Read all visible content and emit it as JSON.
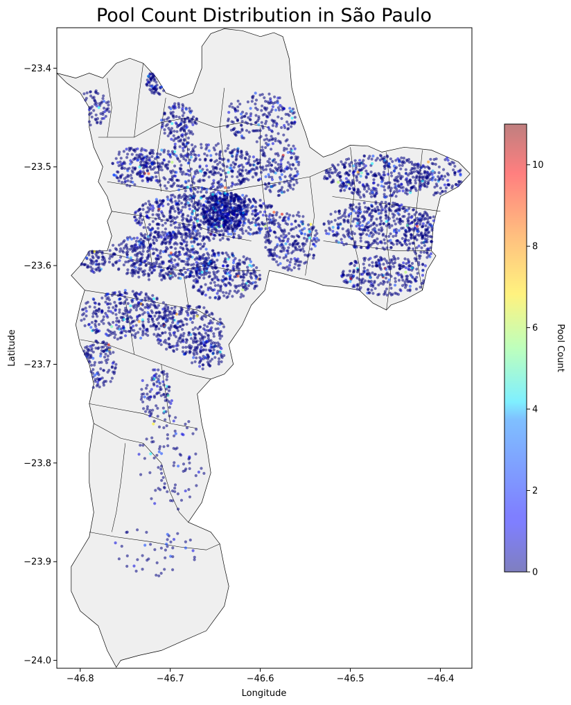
{
  "chart_data": {
    "type": "scatter",
    "title": "Pool Count Distribution in São Paulo",
    "xlabel": "Longitude",
    "ylabel": "Latitude",
    "xlim": [
      -46.826,
      -46.365
    ],
    "ylim": [
      -24.008,
      -23.359
    ],
    "xticks": [
      -46.8,
      -46.7,
      -46.6,
      -46.5,
      -46.4
    ],
    "yticks": [
      -23.4,
      -23.5,
      -23.6,
      -23.7,
      -23.8,
      -23.9,
      -24.0
    ],
    "x_tick_labels": [
      "−46.8",
      "−46.7",
      "−46.6",
      "−46.5",
      "−46.4"
    ],
    "y_tick_labels": [
      "−23.4",
      "−23.5",
      "−23.6",
      "−23.7",
      "−23.8",
      "−23.9",
      "−24.0"
    ],
    "colorbar": {
      "label": "Pool Count",
      "colormap": "jet",
      "alpha": 0.5,
      "range": [
        0,
        11
      ],
      "ticks": [
        0,
        2,
        4,
        6,
        8,
        10
      ],
      "tick_labels": [
        "0",
        "2",
        "4",
        "6",
        "8",
        "10"
      ]
    },
    "map_fill": "#efefef",
    "map_stroke": "#000000",
    "outline": [
      [
        -46.826,
        -23.405
      ],
      [
        -46.805,
        -23.41
      ],
      [
        -46.79,
        -23.405
      ],
      [
        -46.775,
        -23.41
      ],
      [
        -46.76,
        -23.395
      ],
      [
        -46.745,
        -23.39
      ],
      [
        -46.73,
        -23.395
      ],
      [
        -46.715,
        -23.41
      ],
      [
        -46.705,
        -23.425
      ],
      [
        -46.69,
        -23.43
      ],
      [
        -46.675,
        -23.425
      ],
      [
        -46.665,
        -23.4
      ],
      [
        -46.665,
        -23.378
      ],
      [
        -46.655,
        -23.365
      ],
      [
        -46.64,
        -23.36
      ],
      [
        -46.62,
        -23.362
      ],
      [
        -46.6,
        -23.368
      ],
      [
        -46.585,
        -23.364
      ],
      [
        -46.575,
        -23.368
      ],
      [
        -46.568,
        -23.39
      ],
      [
        -46.565,
        -23.42
      ],
      [
        -46.558,
        -23.445
      ],
      [
        -46.55,
        -23.465
      ],
      [
        -46.545,
        -23.48
      ],
      [
        -46.53,
        -23.49
      ],
      [
        -46.52,
        -23.487
      ],
      [
        -46.5,
        -23.478
      ],
      [
        -46.48,
        -23.479
      ],
      [
        -46.465,
        -23.485
      ],
      [
        -46.44,
        -23.48
      ],
      [
        -46.41,
        -23.483
      ],
      [
        -46.38,
        -23.495
      ],
      [
        -46.367,
        -23.507
      ],
      [
        -46.38,
        -23.52
      ],
      [
        -46.4,
        -23.53
      ],
      [
        -46.408,
        -23.56
      ],
      [
        -46.41,
        -23.585
      ],
      [
        -46.405,
        -23.59
      ],
      [
        -46.415,
        -23.605
      ],
      [
        -46.42,
        -23.625
      ],
      [
        -46.44,
        -23.635
      ],
      [
        -46.455,
        -23.64
      ],
      [
        -46.46,
        -23.645
      ],
      [
        -46.475,
        -23.638
      ],
      [
        -46.49,
        -23.625
      ],
      [
        -46.51,
        -23.622
      ],
      [
        -46.53,
        -23.62
      ],
      [
        -46.545,
        -23.615
      ],
      [
        -46.56,
        -23.612
      ],
      [
        -46.575,
        -23.608
      ],
      [
        -46.59,
        -23.605
      ],
      [
        -46.595,
        -23.625
      ],
      [
        -46.61,
        -23.64
      ],
      [
        -46.62,
        -23.66
      ],
      [
        -46.635,
        -23.68
      ],
      [
        -46.63,
        -23.7
      ],
      [
        -46.64,
        -23.71
      ],
      [
        -46.655,
        -23.715
      ],
      [
        -46.67,
        -23.73
      ],
      [
        -46.665,
        -23.76
      ],
      [
        -46.66,
        -23.78
      ],
      [
        -46.655,
        -23.81
      ],
      [
        -46.665,
        -23.84
      ],
      [
        -46.68,
        -23.86
      ],
      [
        -46.655,
        -23.87
      ],
      [
        -46.645,
        -23.882
      ],
      [
        -46.64,
        -23.905
      ],
      [
        -46.635,
        -23.925
      ],
      [
        -46.64,
        -23.945
      ],
      [
        -46.66,
        -23.97
      ],
      [
        -46.685,
        -23.98
      ],
      [
        -46.71,
        -23.99
      ],
      [
        -46.735,
        -23.995
      ],
      [
        -46.755,
        -24.0
      ],
      [
        -46.76,
        -24.007
      ],
      [
        -46.77,
        -23.99
      ],
      [
        -46.78,
        -23.965
      ],
      [
        -46.8,
        -23.95
      ],
      [
        -46.81,
        -23.93
      ],
      [
        -46.81,
        -23.905
      ],
      [
        -46.8,
        -23.89
      ],
      [
        -46.79,
        -23.875
      ],
      [
        -46.785,
        -23.85
      ],
      [
        -46.79,
        -23.82
      ],
      [
        -46.79,
        -23.79
      ],
      [
        -46.785,
        -23.76
      ],
      [
        -46.79,
        -23.74
      ],
      [
        -46.785,
        -23.72
      ],
      [
        -46.79,
        -23.7
      ],
      [
        -46.8,
        -23.68
      ],
      [
        -46.805,
        -23.66
      ],
      [
        -46.8,
        -23.64
      ],
      [
        -46.795,
        -23.625
      ],
      [
        -46.81,
        -23.61
      ],
      [
        -46.8,
        -23.6
      ],
      [
        -46.79,
        -23.585
      ],
      [
        -46.77,
        -23.585
      ],
      [
        -46.765,
        -23.57
      ],
      [
        -46.77,
        -23.555
      ],
      [
        -46.765,
        -23.545
      ],
      [
        -46.77,
        -23.53
      ],
      [
        -46.78,
        -23.515
      ],
      [
        -46.775,
        -23.5
      ],
      [
        -46.785,
        -23.48
      ],
      [
        -46.79,
        -23.46
      ],
      [
        -46.79,
        -23.44
      ],
      [
        -46.8,
        -23.425
      ],
      [
        -46.815,
        -23.415
      ],
      [
        -46.826,
        -23.405
      ]
    ],
    "boundaries": [
      [
        [
          -46.78,
          -23.47
        ],
        [
          -46.74,
          -23.47
        ],
        [
          -46.71,
          -23.455
        ],
        [
          -46.68,
          -23.45
        ],
        [
          -46.65,
          -23.46
        ],
        [
          -46.62,
          -23.455
        ],
        [
          -46.59,
          -23.46
        ]
      ],
      [
        [
          -46.77,
          -23.515
        ],
        [
          -46.735,
          -23.52
        ],
        [
          -46.7,
          -23.525
        ],
        [
          -46.67,
          -23.52
        ],
        [
          -46.64,
          -23.525
        ],
        [
          -46.61,
          -23.52
        ],
        [
          -46.575,
          -23.515
        ],
        [
          -46.545,
          -23.51
        ],
        [
          -46.52,
          -23.5
        ]
      ],
      [
        [
          -46.765,
          -23.545
        ],
        [
          -46.73,
          -23.55
        ],
        [
          -46.7,
          -23.555
        ],
        [
          -46.67,
          -23.56
        ],
        [
          -46.64,
          -23.57
        ],
        [
          -46.61,
          -23.575
        ]
      ],
      [
        [
          -46.79,
          -23.585
        ],
        [
          -46.755,
          -23.59
        ],
        [
          -46.72,
          -23.6
        ],
        [
          -46.69,
          -23.605
        ],
        [
          -46.66,
          -23.6
        ],
        [
          -46.63,
          -23.605
        ],
        [
          -46.6,
          -23.605
        ]
      ],
      [
        [
          -46.795,
          -23.625
        ],
        [
          -46.76,
          -23.63
        ],
        [
          -46.73,
          -23.635
        ],
        [
          -46.7,
          -23.64
        ],
        [
          -46.67,
          -23.645
        ],
        [
          -46.64,
          -23.66
        ]
      ],
      [
        [
          -46.8,
          -23.675
        ],
        [
          -46.77,
          -23.68
        ],
        [
          -46.74,
          -23.69
        ],
        [
          -46.71,
          -23.7
        ],
        [
          -46.68,
          -23.71
        ],
        [
          -46.655,
          -23.715
        ]
      ],
      [
        [
          -46.79,
          -23.74
        ],
        [
          -46.76,
          -23.745
        ],
        [
          -46.73,
          -23.75
        ],
        [
          -46.7,
          -23.76
        ],
        [
          -46.67,
          -23.765
        ]
      ],
      [
        [
          -46.785,
          -23.76
        ],
        [
          -46.755,
          -23.775
        ],
        [
          -46.73,
          -23.78
        ],
        [
          -46.71,
          -23.8
        ],
        [
          -46.7,
          -23.83
        ],
        [
          -46.69,
          -23.85
        ],
        [
          -46.68,
          -23.86
        ]
      ],
      [
        [
          -46.79,
          -23.87
        ],
        [
          -46.76,
          -23.875
        ],
        [
          -46.72,
          -23.88
        ],
        [
          -46.69,
          -23.885
        ],
        [
          -46.66,
          -23.888
        ],
        [
          -46.645,
          -23.882
        ]
      ],
      [
        [
          -46.71,
          -23.525
        ],
        [
          -46.715,
          -23.49
        ],
        [
          -46.71,
          -23.46
        ],
        [
          -46.705,
          -23.43
        ]
      ],
      [
        [
          -46.67,
          -23.56
        ],
        [
          -46.675,
          -23.52
        ],
        [
          -46.68,
          -23.49
        ],
        [
          -46.685,
          -23.45
        ]
      ],
      [
        [
          -46.63,
          -23.57
        ],
        [
          -46.635,
          -23.54
        ],
        [
          -46.64,
          -23.5
        ],
        [
          -46.645,
          -23.46
        ],
        [
          -46.64,
          -23.42
        ]
      ],
      [
        [
          -46.59,
          -23.575
        ],
        [
          -46.595,
          -23.54
        ],
        [
          -46.6,
          -23.5
        ],
        [
          -46.6,
          -23.46
        ]
      ],
      [
        [
          -46.72,
          -23.6
        ],
        [
          -46.725,
          -23.57
        ],
        [
          -46.73,
          -23.55
        ]
      ],
      [
        [
          -46.68,
          -23.64
        ],
        [
          -46.685,
          -23.61
        ],
        [
          -46.69,
          -23.605
        ]
      ],
      [
        [
          -46.74,
          -23.69
        ],
        [
          -46.745,
          -23.66
        ],
        [
          -46.75,
          -23.635
        ]
      ],
      [
        [
          -46.7,
          -23.76
        ],
        [
          -46.705,
          -23.73
        ],
        [
          -46.71,
          -23.7
        ]
      ],
      [
        [
          -46.75,
          -23.78
        ],
        [
          -46.755,
          -23.82
        ],
        [
          -46.76,
          -23.85
        ],
        [
          -46.765,
          -23.87
        ]
      ],
      [
        [
          -46.545,
          -23.51
        ],
        [
          -46.54,
          -23.55
        ],
        [
          -46.545,
          -23.58
        ],
        [
          -46.55,
          -23.61
        ]
      ],
      [
        [
          -46.5,
          -23.48
        ],
        [
          -46.495,
          -23.52
        ],
        [
          -46.5,
          -23.56
        ],
        [
          -46.49,
          -23.6
        ],
        [
          -46.49,
          -23.625
        ]
      ],
      [
        [
          -46.46,
          -23.485
        ],
        [
          -46.455,
          -23.53
        ],
        [
          -46.46,
          -23.57
        ],
        [
          -46.455,
          -23.61
        ],
        [
          -46.46,
          -23.645
        ]
      ],
      [
        [
          -46.42,
          -23.483
        ],
        [
          -46.425,
          -23.53
        ],
        [
          -46.43,
          -23.57
        ],
        [
          -46.425,
          -23.6
        ],
        [
          -46.42,
          -23.625
        ]
      ],
      [
        [
          -46.52,
          -23.53
        ],
        [
          -46.48,
          -23.535
        ],
        [
          -46.44,
          -23.54
        ],
        [
          -46.4,
          -23.545
        ]
      ],
      [
        [
          -46.53,
          -23.575
        ],
        [
          -46.49,
          -23.58
        ],
        [
          -46.45,
          -23.585
        ],
        [
          -46.41,
          -23.585
        ]
      ],
      [
        [
          -46.73,
          -23.395
        ],
        [
          -46.735,
          -23.43
        ],
        [
          -46.74,
          -23.47
        ]
      ],
      [
        [
          -46.77,
          -23.41
        ],
        [
          -46.765,
          -23.44
        ],
        [
          -46.77,
          -23.47
        ]
      ]
    ],
    "clusters": [
      {
        "cx": -46.715,
        "cy": -23.415,
        "rx": 0.012,
        "ry": 0.012,
        "n": 55
      },
      {
        "cx": -46.785,
        "cy": -23.44,
        "rx": 0.018,
        "ry": 0.018,
        "n": 60
      },
      {
        "cx": -46.69,
        "cy": -23.455,
        "rx": 0.02,
        "ry": 0.02,
        "n": 120
      },
      {
        "cx": -46.6,
        "cy": -23.45,
        "rx": 0.04,
        "ry": 0.025,
        "n": 180
      },
      {
        "cx": -46.67,
        "cy": -23.5,
        "rx": 0.07,
        "ry": 0.025,
        "n": 420
      },
      {
        "cx": -46.58,
        "cy": -23.5,
        "rx": 0.025,
        "ry": 0.03,
        "n": 160
      },
      {
        "cx": -46.74,
        "cy": -23.5,
        "rx": 0.025,
        "ry": 0.02,
        "n": 120
      },
      {
        "cx": -46.66,
        "cy": -23.55,
        "rx": 0.08,
        "ry": 0.025,
        "n": 650
      },
      {
        "cx": -46.64,
        "cy": -23.545,
        "rx": 0.025,
        "ry": 0.02,
        "n": 350
      },
      {
        "cx": -46.71,
        "cy": -23.59,
        "rx": 0.06,
        "ry": 0.025,
        "n": 450
      },
      {
        "cx": -46.64,
        "cy": -23.61,
        "rx": 0.04,
        "ry": 0.025,
        "n": 280
      },
      {
        "cx": -46.565,
        "cy": -23.575,
        "rx": 0.03,
        "ry": 0.03,
        "n": 220
      },
      {
        "cx": -46.47,
        "cy": -23.51,
        "rx": 0.06,
        "ry": 0.022,
        "n": 380
      },
      {
        "cx": -46.47,
        "cy": -23.56,
        "rx": 0.06,
        "ry": 0.025,
        "n": 400
      },
      {
        "cx": -46.46,
        "cy": -23.61,
        "rx": 0.05,
        "ry": 0.02,
        "n": 260
      },
      {
        "cx": -46.4,
        "cy": -23.51,
        "rx": 0.025,
        "ry": 0.02,
        "n": 100
      },
      {
        "cx": -46.42,
        "cy": -23.57,
        "rx": 0.02,
        "ry": 0.025,
        "n": 100
      },
      {
        "cx": -46.785,
        "cy": -23.595,
        "rx": 0.015,
        "ry": 0.012,
        "n": 60
      },
      {
        "cx": -46.75,
        "cy": -23.65,
        "rx": 0.05,
        "ry": 0.025,
        "n": 320
      },
      {
        "cx": -46.68,
        "cy": -23.665,
        "rx": 0.04,
        "ry": 0.025,
        "n": 260
      },
      {
        "cx": -46.78,
        "cy": -23.7,
        "rx": 0.02,
        "ry": 0.025,
        "n": 110
      },
      {
        "cx": -46.715,
        "cy": -23.73,
        "rx": 0.02,
        "ry": 0.025,
        "n": 90
      },
      {
        "cx": -46.66,
        "cy": -23.69,
        "rx": 0.02,
        "ry": 0.015,
        "n": 80
      },
      {
        "cx": -46.7,
        "cy": -23.8,
        "rx": 0.04,
        "ry": 0.05,
        "n": 90
      },
      {
        "cx": -46.72,
        "cy": -23.89,
        "rx": 0.05,
        "ry": 0.025,
        "n": 45
      }
    ]
  }
}
